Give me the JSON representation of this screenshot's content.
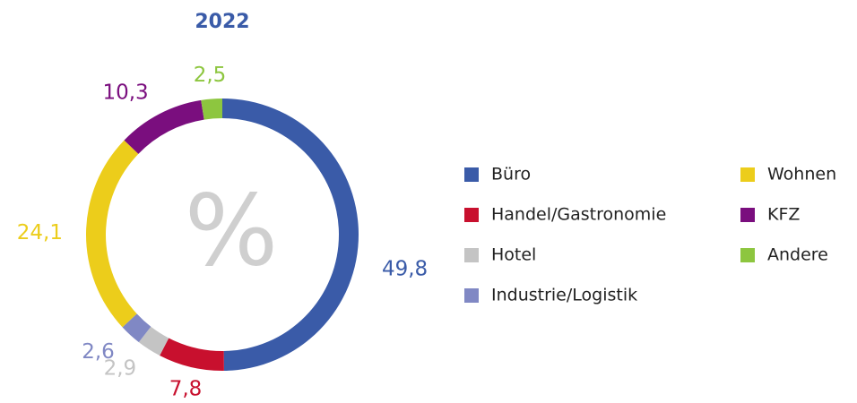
{
  "chart_data": {
    "type": "donut",
    "title": "2022",
    "title_color": "#3a5ba8",
    "center_label": "%",
    "series": [
      {
        "name": "Büro",
        "color": "#3a5ba8",
        "values": [
          49.8
        ],
        "value_labels": [
          "49,8"
        ]
      },
      {
        "name": "Handel/Gastronomie",
        "color": "#c8102e",
        "values": [
          7.8
        ],
        "value_labels": [
          "7,8"
        ]
      },
      {
        "name": "Hotel",
        "color": "#c4c4c4",
        "values": [
          2.9
        ],
        "value_labels": [
          "2,9"
        ]
      },
      {
        "name": "Industrie/Logistik",
        "color": "#8088c4",
        "values": [
          2.6
        ],
        "value_labels": [
          "2,6"
        ]
      },
      {
        "name": "Wohnen",
        "color": "#eccd1b",
        "values": [
          24.1
        ],
        "value_labels": [
          "24,1"
        ]
      },
      {
        "name": "KFZ",
        "color": "#7a0e7e",
        "values": [
          10.3
        ],
        "value_labels": [
          "10,3"
        ]
      },
      {
        "name": "Andere",
        "color": "#8dc63f",
        "values": [
          2.5
        ],
        "value_labels": [
          "2,5"
        ]
      }
    ],
    "legend": "right"
  }
}
